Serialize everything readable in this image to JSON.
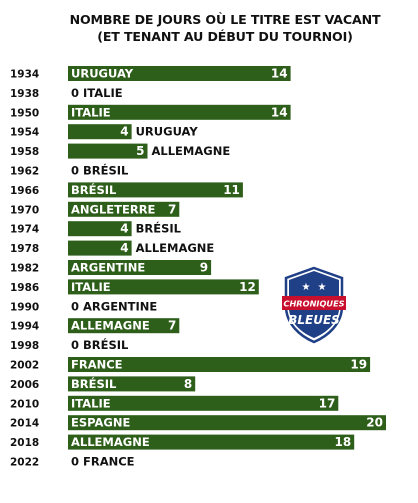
{
  "title_line1": "NOMBRE DE JOURS OÙ LE TITRE EST VACANT",
  "title_line2": "(ET TENANT AU DÉBUT DU TOURNOI)",
  "logo": {
    "line1": "CHRONIQUES",
    "line2": "BLEUES",
    "icon": "football-shield-logo"
  },
  "colors": {
    "bar": "#2d5e1a",
    "text": "#111111",
    "logo_blue": "#1f3f86",
    "logo_red": "#c8102e"
  },
  "chart_data": {
    "type": "bar",
    "orientation": "horizontal",
    "title": "NOMBRE DE JOURS OÙ LE TITRE EST VACANT (ET TENANT AU DÉBUT DU TOURNOI)",
    "categories": [
      "1934",
      "1938",
      "1950",
      "1954",
      "1958",
      "1962",
      "1966",
      "1970",
      "1974",
      "1978",
      "1982",
      "1986",
      "1990",
      "1994",
      "1998",
      "2002",
      "2006",
      "2010",
      "2014",
      "2018",
      "2022"
    ],
    "values": [
      14,
      0,
      14,
      4,
      5,
      0,
      11,
      7,
      4,
      4,
      9,
      12,
      0,
      7,
      0,
      19,
      8,
      17,
      20,
      18,
      0
    ],
    "holders": [
      "URUGUAY",
      "ITALIE",
      "ITALIE",
      "URUGUAY",
      "ALLEMAGNE",
      "BRÉSIL",
      "BRÉSIL",
      "ANGLETERRE",
      "BRÉSIL",
      "ALLEMAGNE",
      "ARGENTINE",
      "ITALIE",
      "ARGENTINE",
      "ALLEMAGNE",
      "BRÉSIL",
      "FRANCE",
      "BRÉSIL",
      "ITALIE",
      "ESPAGNE",
      "ALLEMAGNE",
      "FRANCE"
    ],
    "xlim": [
      0,
      20
    ],
    "grid": false
  }
}
